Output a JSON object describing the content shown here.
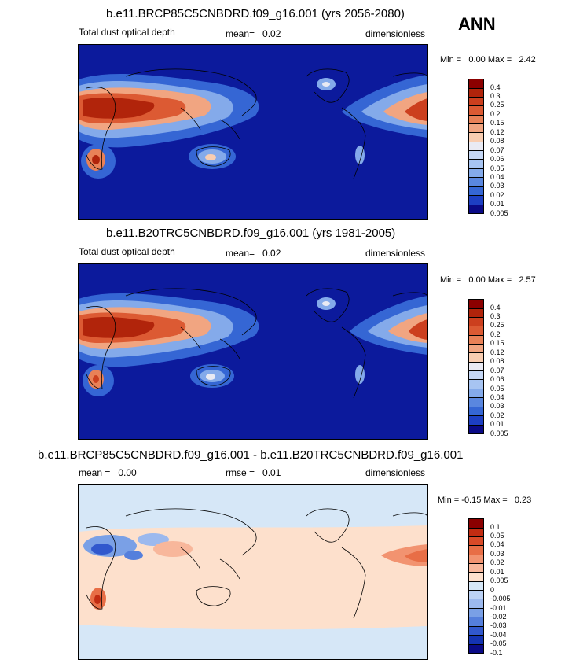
{
  "season": "ANN",
  "panels": [
    {
      "title": "b.e11.BRCP85C5CNBDRD.f09_g16.001 (yrs 2056-2080)",
      "variable": "Total dust optical depth",
      "mean_label": "mean=",
      "mean_value": "0.02",
      "units": "dimensionless",
      "min_label": "Min =",
      "min_value": "0.00",
      "max_label": "Max =",
      "max_value": "2.42",
      "levels": [
        "0.4",
        "0.3",
        "0.25",
        "0.2",
        "0.15",
        "0.12",
        "0.08",
        "0.07",
        "0.06",
        "0.05",
        "0.04",
        "0.03",
        "0.02",
        "0.01",
        "0.005"
      ]
    },
    {
      "title": "b.e11.B20TRC5CNBDRD.f09_g16.001 (yrs 1981-2005)",
      "variable": "Total dust optical depth",
      "mean_label": "mean=",
      "mean_value": "0.02",
      "units": "dimensionless",
      "min_label": "Min =",
      "min_value": "0.00",
      "max_label": "Max =",
      "max_value": "2.57",
      "levels": [
        "0.4",
        "0.3",
        "0.25",
        "0.2",
        "0.15",
        "0.12",
        "0.08",
        "0.07",
        "0.06",
        "0.05",
        "0.04",
        "0.03",
        "0.02",
        "0.01",
        "0.005"
      ]
    },
    {
      "title": "b.e11.BRCP85C5CNBDRD.f09_g16.001 - b.e11.B20TRC5CNBDRD.f09_g16.001",
      "mean_label": "mean =",
      "mean_value": "0.00",
      "rmse_label": "rmse =",
      "rmse_value": "0.01",
      "units": "dimensionless",
      "min_label": "Min =",
      "min_value": "-0.15",
      "max_label": "Max =",
      "max_value": "0.23",
      "levels": [
        "0.1",
        "0.05",
        "0.04",
        "0.03",
        "0.02",
        "0.01",
        "0.005",
        "0",
        "-0.005",
        "-0.01",
        "-0.02",
        "-0.03",
        "-0.04",
        "-0.05",
        "-0.1"
      ]
    }
  ],
  "colors": {
    "abs_scale": [
      "#8b0000",
      "#b1240b",
      "#cc3f1e",
      "#dc5a33",
      "#e98157",
      "#f1a581",
      "#f8cdb1",
      "#e9eaf3",
      "#c5d7f5",
      "#a7c4f2",
      "#84aaea",
      "#5a87df",
      "#3566d4",
      "#1d3fc3",
      "#0a0a86"
    ],
    "diff_scale": [
      "#8b0000",
      "#c22c12",
      "#d94a28",
      "#e86e46",
      "#f29370",
      "#f8b79b",
      "#fde0cc",
      "#d6e7f7",
      "#bcd2f5",
      "#9cb9ee",
      "#7aa0e6",
      "#557fdc",
      "#3158cd",
      "#1433b2",
      "#0a0a86"
    ],
    "ocean_abs": "#0c1a9c",
    "ocean_diff": "#fde0cc",
    "coast": "#000000"
  },
  "chart_data": [
    {
      "type": "heatmap",
      "title": "b.e11.BRCP85C5CNBDRD.f09_g16.001 (yrs 2056-2080)",
      "variable": "Total dust optical depth",
      "units": "dimensionless",
      "mean": 0.02,
      "min": 0.0,
      "max": 2.42,
      "contour_levels": [
        0.005,
        0.01,
        0.02,
        0.03,
        0.04,
        0.05,
        0.06,
        0.07,
        0.08,
        0.12,
        0.15,
        0.2,
        0.25,
        0.3,
        0.4
      ]
    },
    {
      "type": "heatmap",
      "title": "b.e11.B20TRC5CNBDRD.f09_g16.001 (yrs 1981-2005)",
      "variable": "Total dust optical depth",
      "units": "dimensionless",
      "mean": 0.02,
      "min": 0.0,
      "max": 2.57,
      "contour_levels": [
        0.005,
        0.01,
        0.02,
        0.03,
        0.04,
        0.05,
        0.06,
        0.07,
        0.08,
        0.12,
        0.15,
        0.2,
        0.25,
        0.3,
        0.4
      ]
    },
    {
      "type": "heatmap",
      "title": "b.e11.BRCP85C5CNBDRD.f09_g16.001 - b.e11.B20TRC5CNBDRD.f09_g16.001",
      "units": "dimensionless",
      "mean": 0.0,
      "rmse": 0.01,
      "min": -0.15,
      "max": 0.23,
      "contour_levels": [
        -0.1,
        -0.05,
        -0.04,
        -0.03,
        -0.02,
        -0.01,
        -0.005,
        0,
        0.005,
        0.01,
        0.02,
        0.03,
        0.04,
        0.05,
        0.1
      ]
    }
  ]
}
